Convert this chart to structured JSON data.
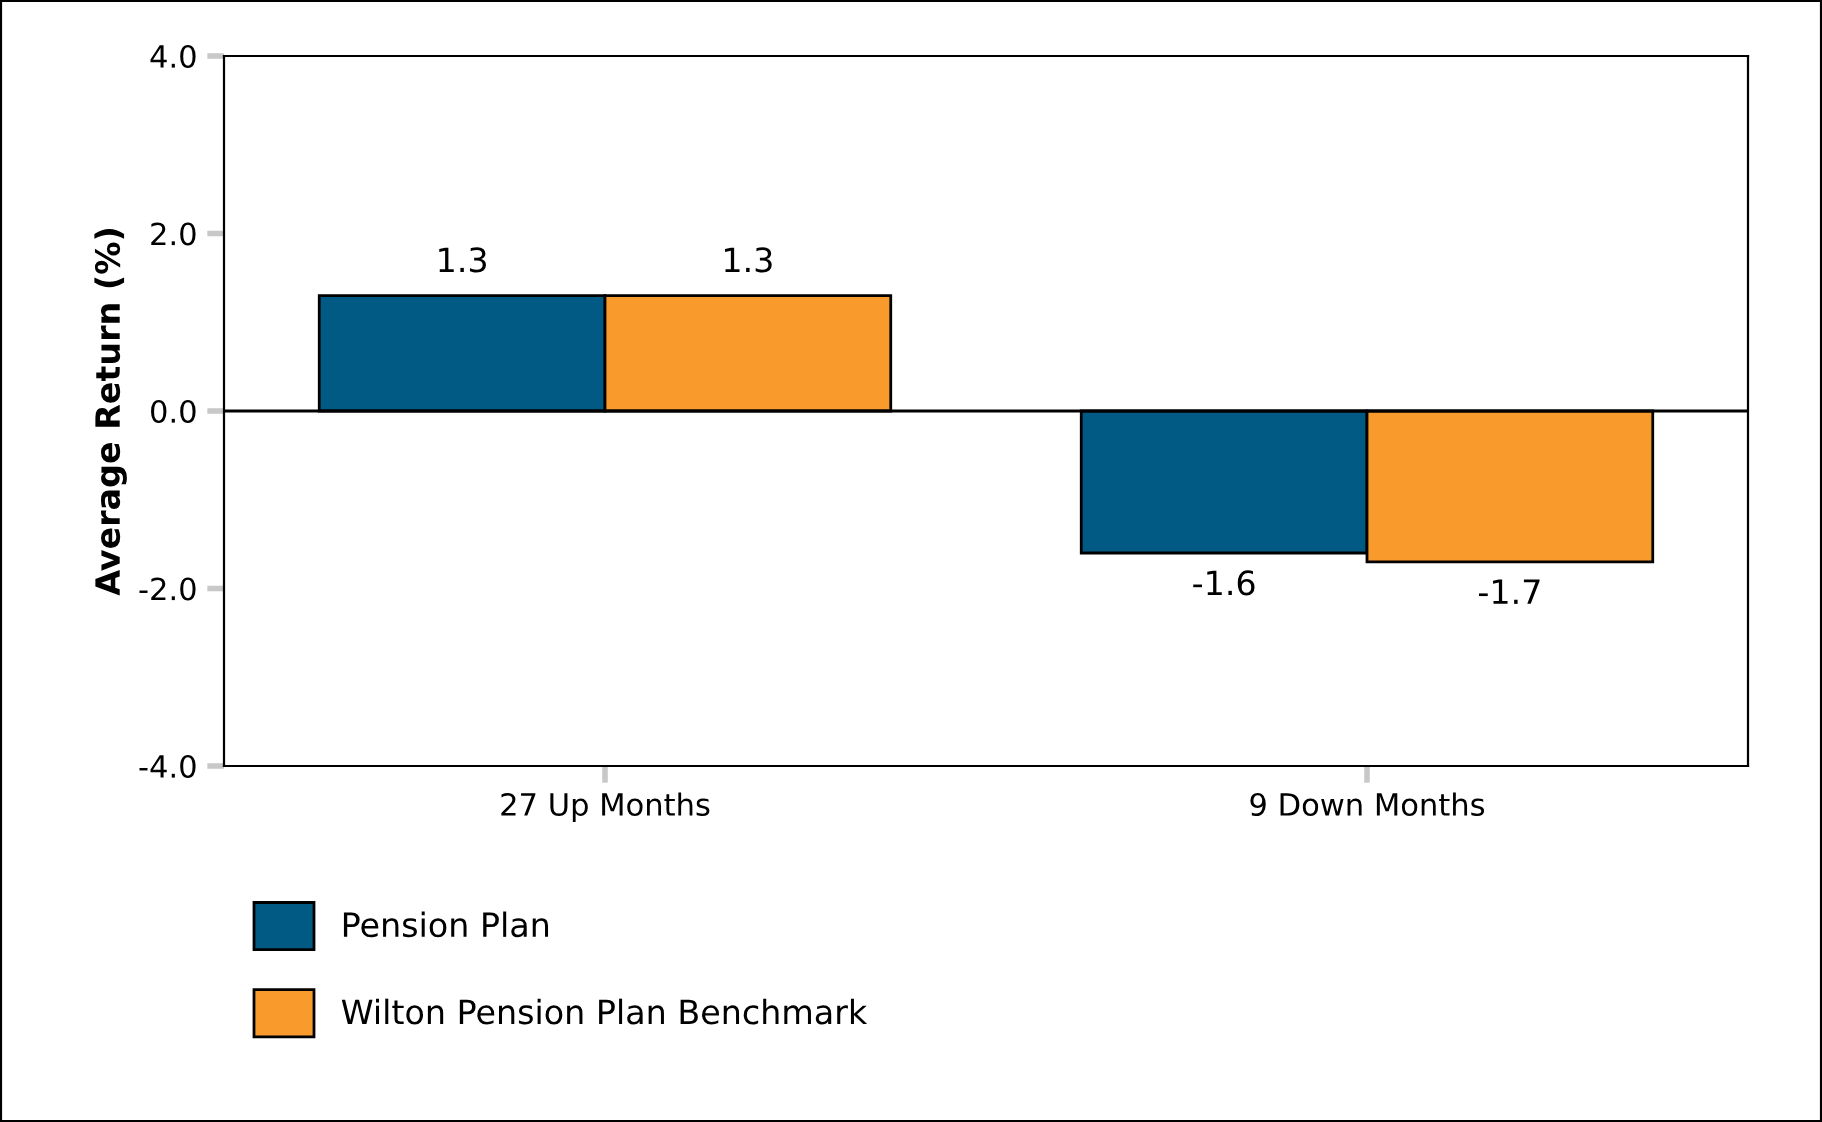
{
  "chart_data": {
    "type": "bar",
    "ylabel": "Average Return (%)",
    "categories": [
      "27 Up Months",
      "9 Down Months"
    ],
    "series": [
      {
        "name": "Pension Plan",
        "color": "#005a84",
        "values": [
          1.3,
          -1.6
        ]
      },
      {
        "name": "Wilton Pension Plan Benchmark",
        "color": "#f89b2c",
        "values": [
          1.3,
          -1.7
        ]
      }
    ],
    "ylim": [
      -4.0,
      4.0
    ],
    "yticks": [
      {
        "value": -4,
        "label": "-4.0"
      },
      {
        "value": -2,
        "label": "-2.0"
      },
      {
        "value": 0,
        "label": "0.0"
      },
      {
        "value": 2,
        "label": "2.0"
      },
      {
        "value": 4,
        "label": "4.0"
      }
    ],
    "ref_lines": [
      {
        "axis": "y",
        "value": 0,
        "color": "#000000"
      }
    ],
    "data_labels": true,
    "legend": "bottom"
  }
}
